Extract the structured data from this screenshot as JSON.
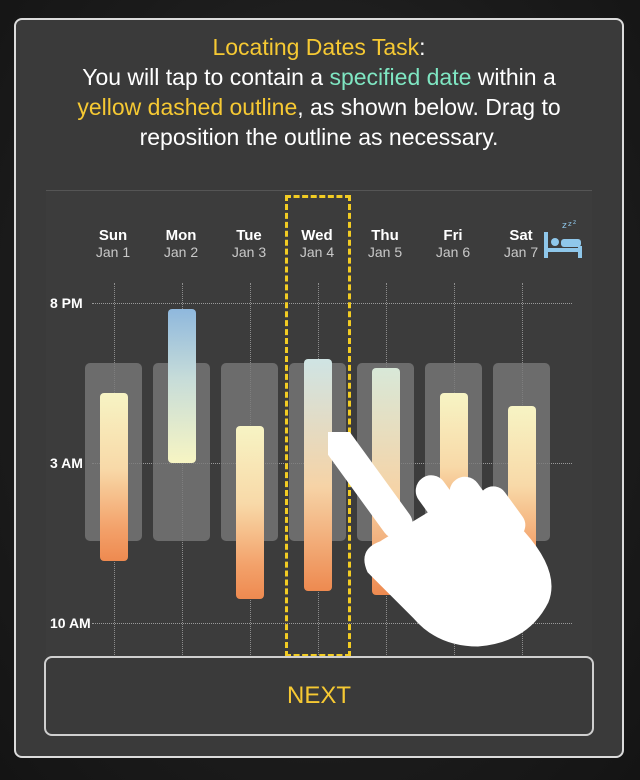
{
  "instructions": {
    "title": "Locating Dates Task",
    "title_colon": ":",
    "line1_a": "You will tap to contain a ",
    "line1_highlight": "specified date",
    "line1_b": " within a",
    "line2_highlight": "yellow dashed outline",
    "line2_b": ", as shown below. Drag to",
    "line3": "reposition the outline as necessary."
  },
  "chart": {
    "days": [
      {
        "name": "Sun",
        "date": "Jan 1"
      },
      {
        "name": "Mon",
        "date": "Jan 2"
      },
      {
        "name": "Tue",
        "date": "Jan 3"
      },
      {
        "name": "Wed",
        "date": "Jan 4"
      },
      {
        "name": "Thu",
        "date": "Jan 5"
      },
      {
        "name": "Fri",
        "date": "Jan 6"
      },
      {
        "name": "Sat",
        "date": "Jan 7"
      }
    ],
    "time_labels": [
      "8 PM",
      "3 AM",
      "10 AM"
    ],
    "highlighted_day": "Wed",
    "icon": "sleep-bed-icon"
  },
  "next_label": "NEXT",
  "colors": {
    "accent_yellow": "#f6c933",
    "accent_green": "#7fe6c2",
    "outline_yellow": "#f2cc23"
  }
}
